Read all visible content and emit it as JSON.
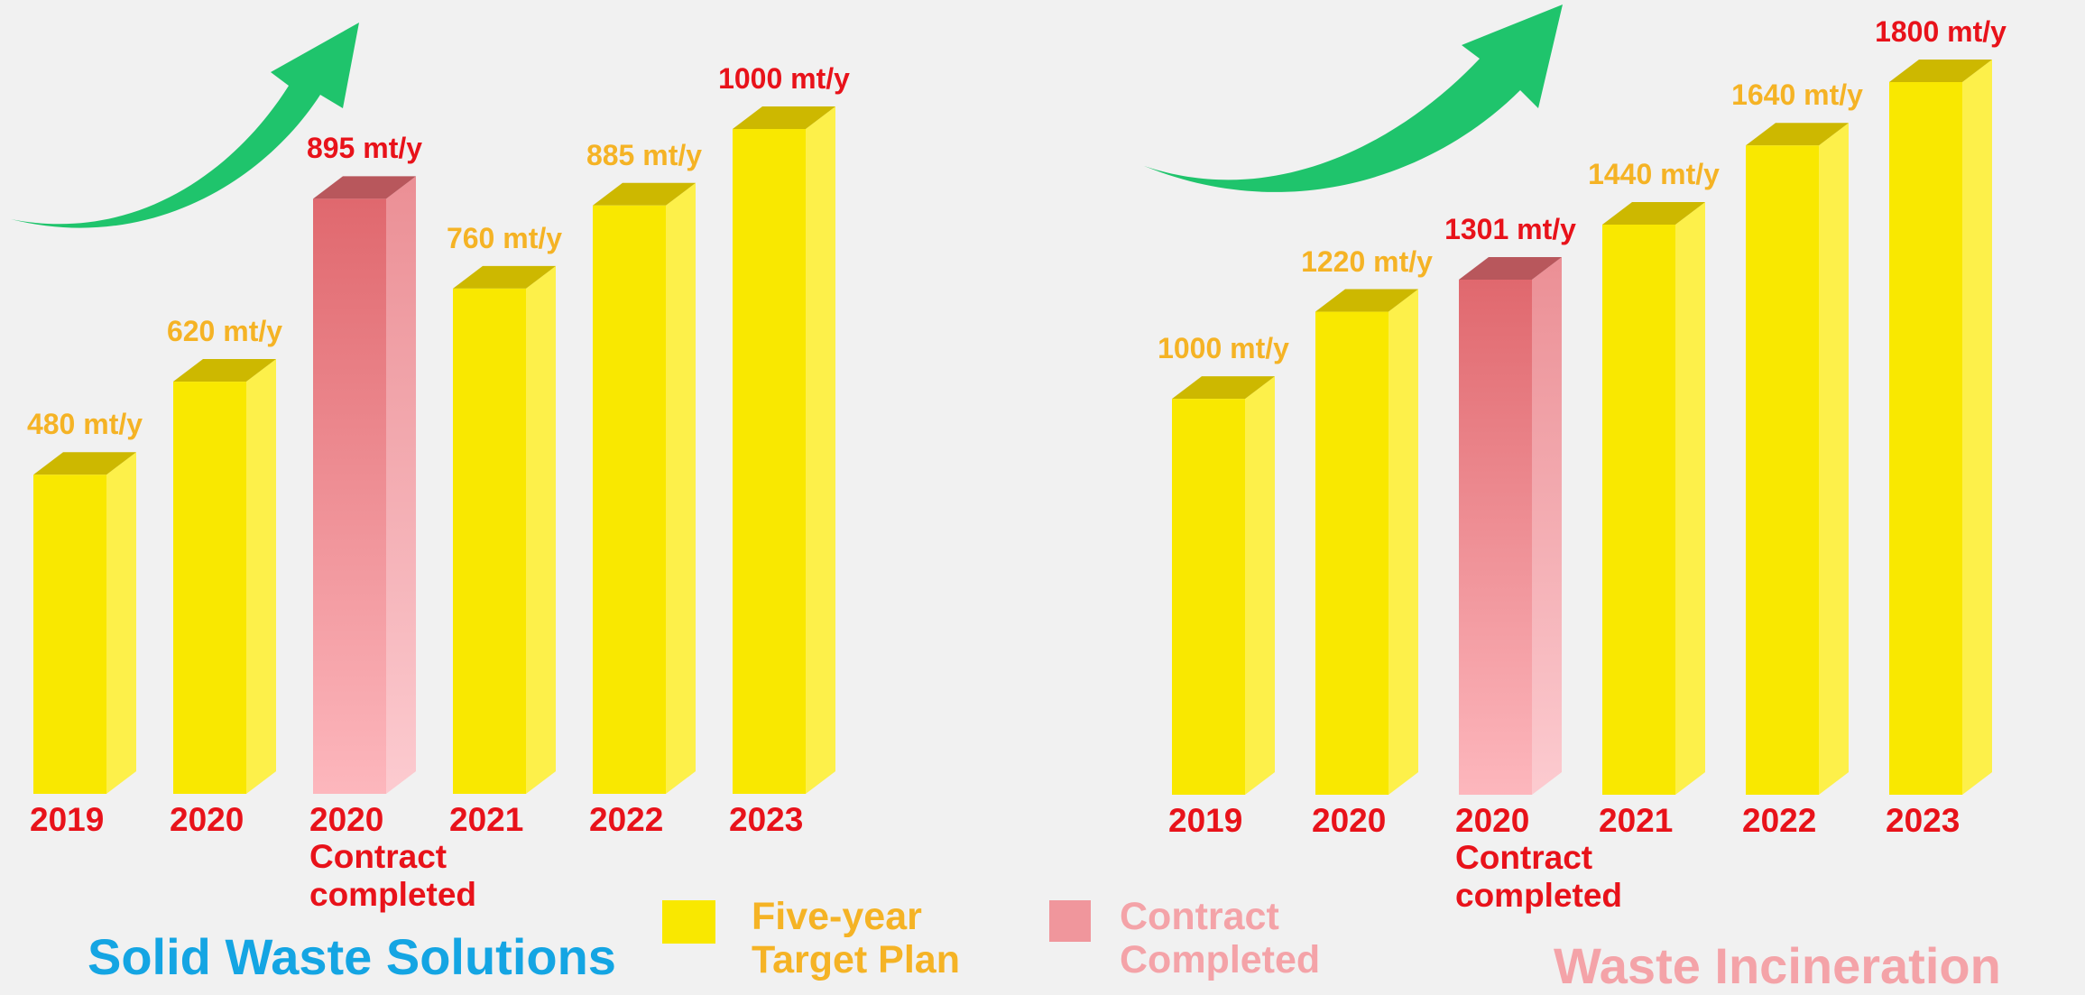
{
  "chart_data": [
    {
      "type": "bar",
      "title": "Solid Waste Solutions",
      "title_color": "#14a5e3",
      "categories": [
        "2019",
        "2020",
        "2020\nContract\ncompleted",
        "2021",
        "2022",
        "2023"
      ],
      "values": [
        480,
        620,
        895,
        760,
        885,
        1000
      ],
      "value_labels": [
        "480 mt/y",
        "620 mt/y",
        "895 mt/y",
        "760 mt/y",
        "885 mt/y",
        "1000 mt/y"
      ],
      "colors": [
        "#f9e800",
        "#f9e800",
        "#f0969c",
        "#f9e800",
        "#f9e800",
        "#f9e800"
      ],
      "label_colors": [
        "#f5b325",
        "#f5b325",
        "#e8121a",
        "#f5b325",
        "#f5b325",
        "#e8121a"
      ],
      "legend": [
        {
          "name": "Five-year Target Plan",
          "color": "#f9e800",
          "text_color": "#f5b325"
        },
        {
          "name": "Contract Completed",
          "color": "#f0969c",
          "text_color": "#f4a3a8"
        }
      ]
    },
    {
      "type": "bar",
      "title": "Waste Incineration",
      "title_color": "#f4a3a8",
      "categories": [
        "2019",
        "2020",
        "2020\nContract\ncompleted",
        "2021",
        "2022",
        "2023"
      ],
      "values": [
        1000,
        1220,
        1301,
        1440,
        1640,
        1800
      ],
      "value_labels": [
        "1000 mt/y",
        "1220 mt/y",
        "1301 mt/y",
        "1440 mt/y",
        "1640 mt/y",
        "1800 mt/y"
      ],
      "colors": [
        "#f9e800",
        "#f9e800",
        "#f0969c",
        "#f9e800",
        "#f9e800",
        "#f9e800"
      ],
      "label_colors": [
        "#f5b325",
        "#f5b325",
        "#e8121a",
        "#f5b325",
        "#f5b325",
        "#e8121a"
      ]
    }
  ]
}
